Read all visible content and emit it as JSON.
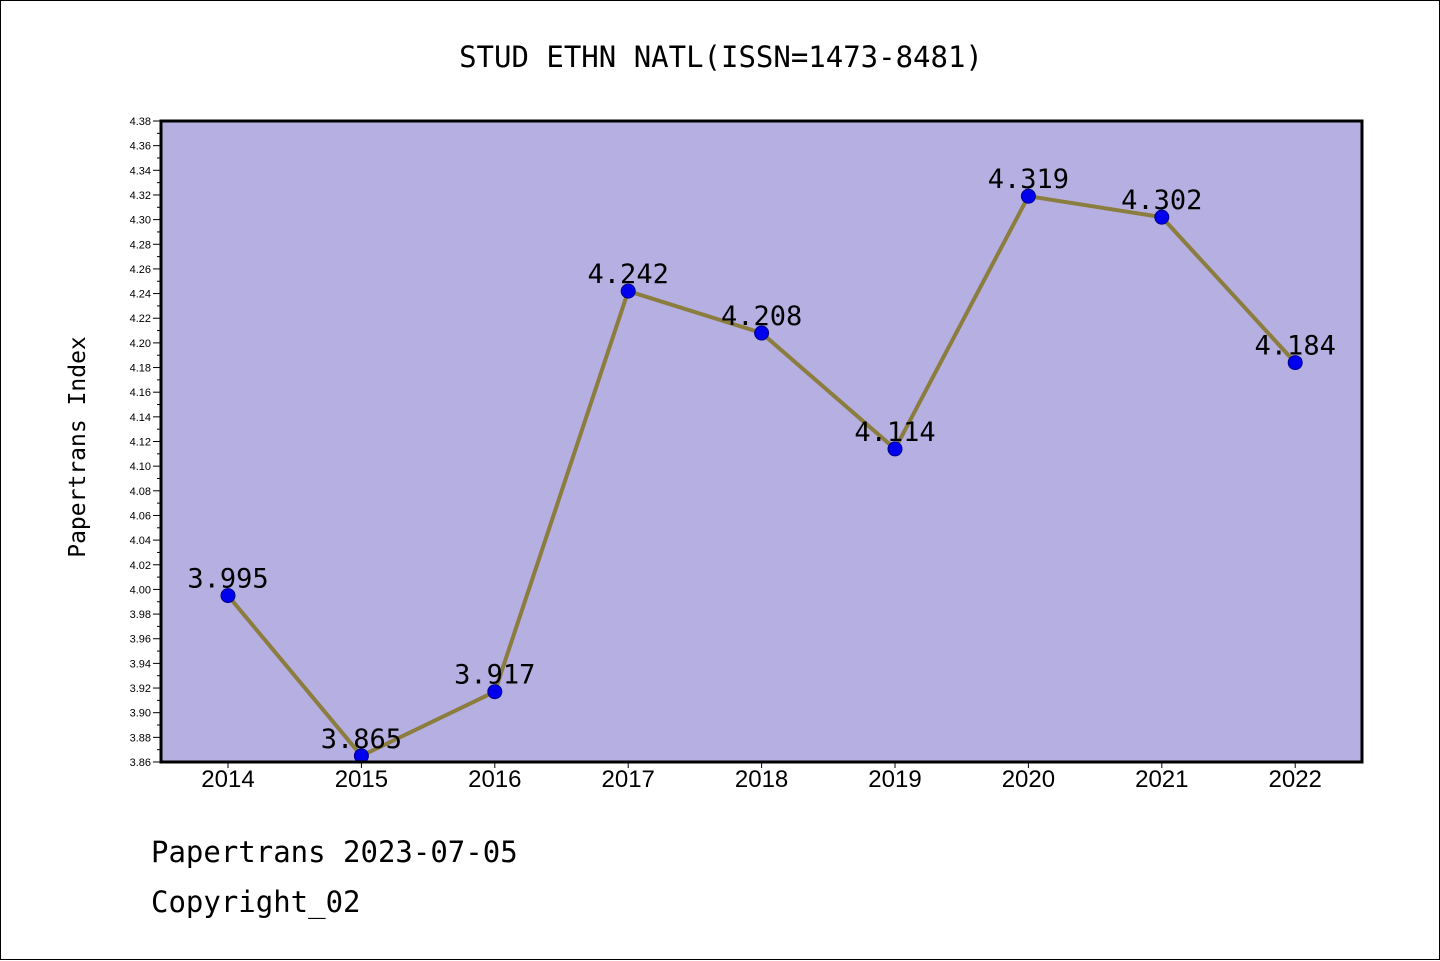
{
  "chart_data": {
    "type": "line",
    "title": "STUD ETHN NATL(ISSN=1473-8481)",
    "xlabel": "",
    "ylabel": "Papertrans Index",
    "categories": [
      "2014",
      "2015",
      "2016",
      "2017",
      "2018",
      "2019",
      "2020",
      "2021",
      "2022"
    ],
    "values": [
      3.995,
      3.865,
      3.917,
      4.242,
      4.208,
      4.114,
      4.319,
      4.302,
      4.184
    ],
    "value_labels": [
      "3.995",
      "3.865",
      "3.917",
      "4.242",
      "4.208",
      "4.114",
      "4.319",
      "4.302",
      "4.184"
    ],
    "ylim": [
      3.86,
      4.38
    ],
    "yticks": [
      "3.86",
      "3.88",
      "3.90",
      "3.92",
      "3.94",
      "3.96",
      "3.98",
      "4.00",
      "4.02",
      "4.04",
      "4.06",
      "4.08",
      "4.10",
      "4.12",
      "4.14",
      "4.16",
      "4.18",
      "4.20",
      "4.22",
      "4.24",
      "4.26",
      "4.28",
      "4.30",
      "4.32",
      "4.34",
      "4.36",
      "4.38"
    ],
    "grid": false,
    "legend": "none",
    "colors": {
      "plot_background": "#b5afe2",
      "line": "#8b7d3e",
      "marker": "#0000ee",
      "marker_edge": "#00008b",
      "axis": "#000000"
    }
  },
  "footer": {
    "date_line": "Papertrans 2023-07-05",
    "copyright": "Copyright_02"
  }
}
